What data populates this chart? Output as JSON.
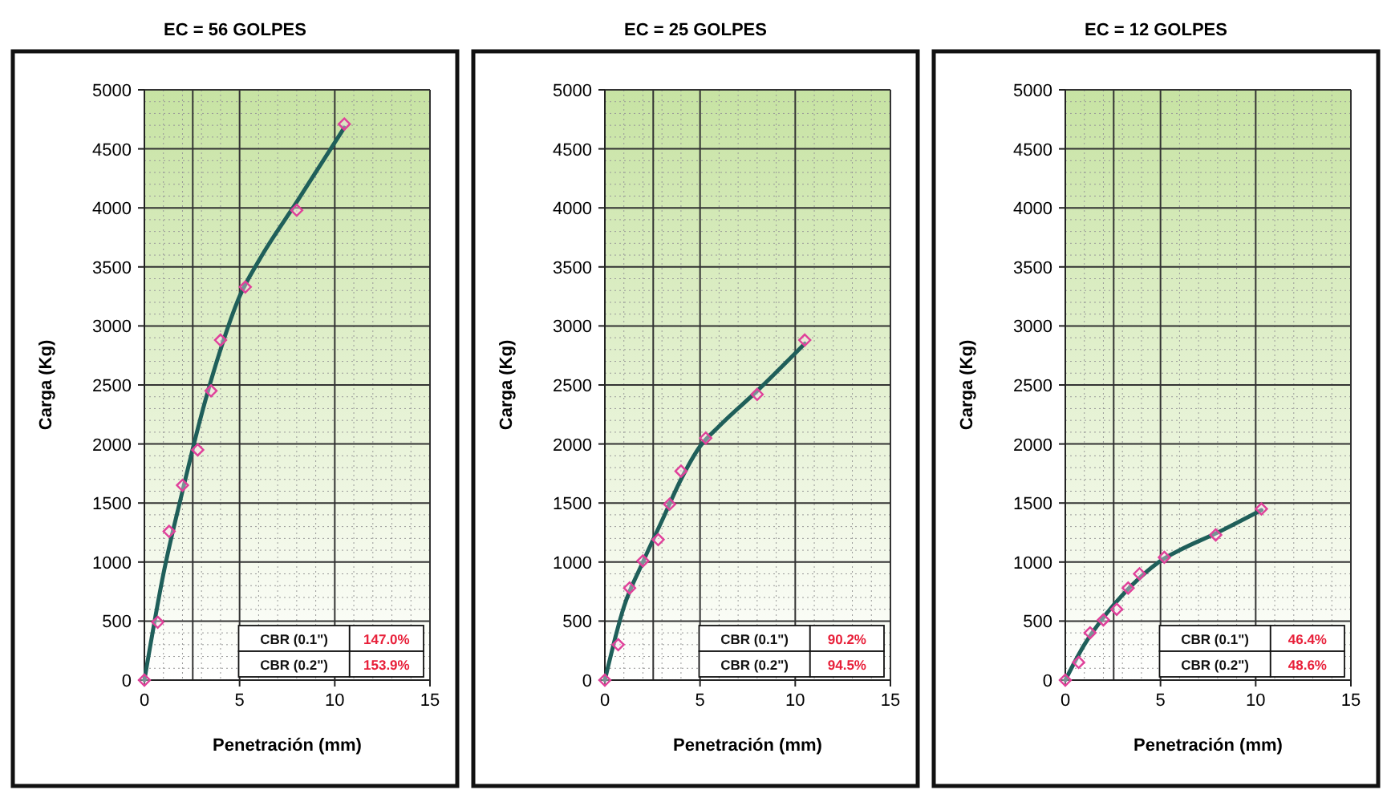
{
  "chart_data": [
    {
      "type": "line",
      "title": "EC = 56 GOLPES",
      "xlabel": "Penetración (mm)",
      "ylabel": "Carga (Kg)",
      "xlim": [
        0,
        15
      ],
      "xticks": [
        0,
        5,
        10,
        15
      ],
      "ylim": [
        0,
        5000
      ],
      "yticks": [
        0,
        500,
        1000,
        1500,
        2000,
        2500,
        3000,
        3500,
        4000,
        4500,
        5000
      ],
      "grid": true,
      "annotations": [
        "CBR (0.1\")",
        "147.0%",
        "CBR (0.2\")",
        "153.9%"
      ],
      "ref_lines": [
        {
          "axis": "x",
          "value": 2.54,
          "color": "#333333"
        }
      ],
      "series": [
        {
          "color": "#1f5f5a",
          "marker": "none",
          "x": [
            0,
            1,
            2,
            3,
            4,
            5,
            6,
            8,
            10.5
          ],
          "values": [
            0,
            900,
            1600,
            2250,
            2800,
            3250,
            3550,
            4050,
            4680
          ]
        },
        {
          "type": "scatter",
          "color": "#e0409a",
          "marker": "diamond",
          "x": [
            0,
            0.7,
            1.3,
            2.0,
            2.8,
            3.5,
            4.0,
            5.3,
            8.0,
            10.5
          ],
          "values": [
            0,
            490,
            1260,
            1650,
            1950,
            2450,
            2880,
            3330,
            3980,
            4710
          ]
        }
      ]
    },
    {
      "type": "line",
      "title": "EC = 25 GOLPES",
      "xlabel": "Penetración (mm)",
      "ylabel": "Carga (Kg)",
      "xlim": [
        0,
        15
      ],
      "xticks": [
        0,
        5,
        10,
        15
      ],
      "ylim": [
        0,
        5000
      ],
      "yticks": [
        0,
        500,
        1000,
        1500,
        2000,
        2500,
        3000,
        3500,
        4000,
        4500,
        5000
      ],
      "grid": true,
      "annotations": [
        "CBR (0.1\")",
        "90.2%",
        "CBR (0.2\")",
        "94.5%"
      ],
      "ref_lines": [
        {
          "axis": "x",
          "value": 2.54,
          "color": "#333333"
        }
      ],
      "series": [
        {
          "color": "#1f5f5a",
          "marker": "none",
          "x": [
            0,
            1,
            2,
            3,
            4,
            5,
            6,
            8,
            10.5
          ],
          "values": [
            0,
            620,
            1000,
            1350,
            1700,
            1980,
            2150,
            2450,
            2850
          ]
        },
        {
          "type": "scatter",
          "color": "#e0409a",
          "marker": "diamond",
          "x": [
            0,
            0.7,
            1.3,
            2.0,
            2.8,
            3.4,
            4.0,
            5.3,
            8.0,
            10.5
          ],
          "values": [
            0,
            300,
            780,
            1010,
            1190,
            1490,
            1770,
            2050,
            2420,
            2880
          ]
        }
      ]
    },
    {
      "type": "line",
      "title": "EC = 12 GOLPES",
      "xlabel": "Penetración (mm)",
      "ylabel": "Carga (Kg)",
      "xlim": [
        0,
        15
      ],
      "xticks": [
        0,
        5,
        10,
        15
      ],
      "ylim": [
        0,
        5000
      ],
      "yticks": [
        0,
        500,
        1000,
        1500,
        2000,
        2500,
        3000,
        3500,
        4000,
        4500,
        5000
      ],
      "grid": true,
      "annotations": [
        "CBR (0.1\")",
        "46.4%",
        "CBR (0.2\")",
        "48.6%"
      ],
      "ref_lines": [
        {
          "axis": "x",
          "value": 2.54,
          "color": "#333333"
        }
      ],
      "series": [
        {
          "color": "#1f5f5a",
          "marker": "none",
          "x": [
            0,
            1,
            2,
            3,
            4,
            5,
            6,
            8,
            10.3
          ],
          "values": [
            0,
            300,
            530,
            720,
            880,
            1010,
            1100,
            1250,
            1440
          ]
        },
        {
          "type": "scatter",
          "color": "#e0409a",
          "marker": "diamond",
          "x": [
            0,
            0.7,
            1.3,
            2.0,
            2.7,
            3.3,
            3.9,
            5.2,
            7.9,
            10.3
          ],
          "values": [
            0,
            150,
            400,
            510,
            600,
            780,
            900,
            1040,
            1230,
            1450
          ]
        }
      ]
    }
  ]
}
